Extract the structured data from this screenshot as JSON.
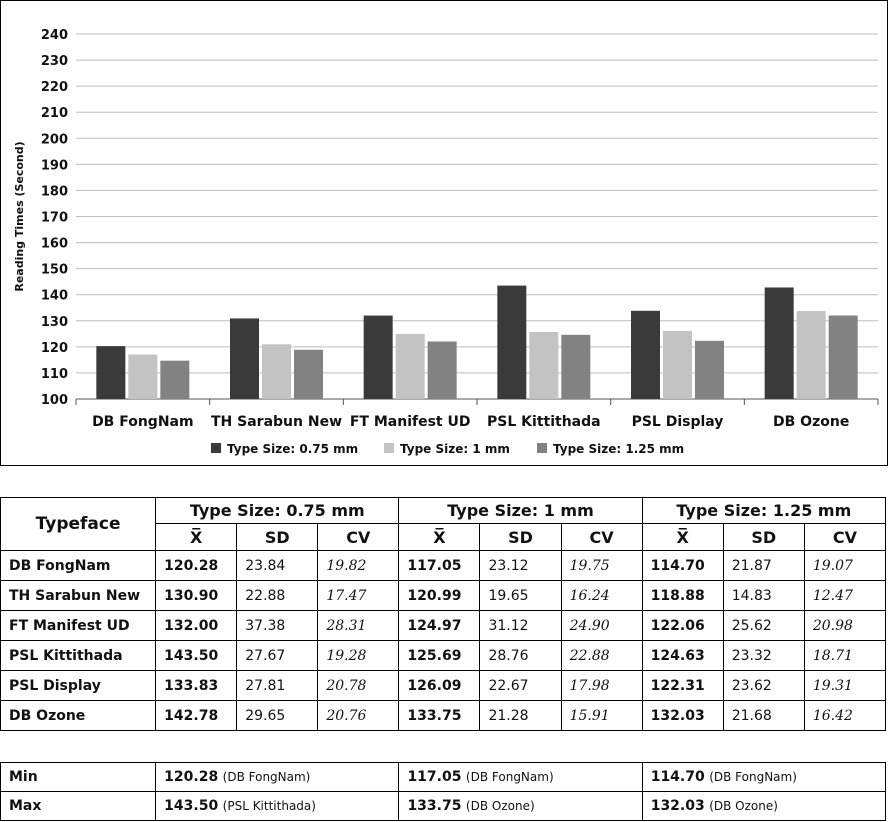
{
  "chart_data": {
    "type": "bar",
    "title": "",
    "xlabel": "",
    "ylabel": "Reading Times (Second)",
    "ylim": [
      100,
      240
    ],
    "yticks": [
      100,
      110,
      120,
      130,
      140,
      150,
      160,
      170,
      180,
      190,
      200,
      210,
      220,
      230,
      240
    ],
    "grid": true,
    "legend_position": "bottom",
    "categories": [
      "DB FongNam",
      "TH Sarabun New",
      "FT Manifest UD",
      "PSL Kittithada",
      "PSL Display",
      "DB Ozone"
    ],
    "series": [
      {
        "name": "Type Size: 0.75 mm",
        "color": "#3a3a3a",
        "values": [
          120.28,
          130.9,
          132.0,
          143.5,
          133.83,
          142.78
        ]
      },
      {
        "name": "Type Size: 1 mm",
        "color": "#c3c3c3",
        "values": [
          117.05,
          120.99,
          124.97,
          125.69,
          126.09,
          133.75
        ]
      },
      {
        "name": "Type Size: 1.25 mm",
        "color": "#828282",
        "values": [
          114.7,
          118.88,
          122.06,
          124.63,
          122.31,
          132.03
        ]
      }
    ]
  },
  "table": {
    "typeface_header": "Typeface",
    "groups": [
      "Type Size: 0.75 mm",
      "Type Size: 1 mm",
      "Type Size: 1.25 mm"
    ],
    "subheaders": [
      "X̅",
      "SD",
      "CV"
    ],
    "rows": [
      {
        "name": "DB FongNam",
        "cells": [
          "120.28",
          "23.84",
          "19.82",
          "117.05",
          "23.12",
          "19.75",
          "114.70",
          "21.87",
          "19.07"
        ]
      },
      {
        "name": "TH Sarabun New",
        "cells": [
          "130.90",
          "22.88",
          "17.47",
          "120.99",
          "19.65",
          "16.24",
          "118.88",
          "14.83",
          "12.47"
        ]
      },
      {
        "name": "FT Manifest UD",
        "cells": [
          "132.00",
          "37.38",
          "28.31",
          "124.97",
          "31.12",
          "24.90",
          "122.06",
          "25.62",
          "20.98"
        ]
      },
      {
        "name": "PSL Kittithada",
        "cells": [
          "143.50",
          "27.67",
          "19.28",
          "125.69",
          "28.76",
          "22.88",
          "124.63",
          "23.32",
          "18.71"
        ]
      },
      {
        "name": "PSL Display",
        "cells": [
          "133.83",
          "27.81",
          "20.78",
          "126.09",
          "22.67",
          "17.98",
          "122.31",
          "23.62",
          "19.31"
        ]
      },
      {
        "name": "DB Ozone",
        "cells": [
          "142.78",
          "29.65",
          "20.76",
          "133.75",
          "21.28",
          "15.91",
          "132.03",
          "21.68",
          "16.42"
        ]
      }
    ]
  },
  "minmax": {
    "rows": [
      {
        "label": "Min",
        "cells": [
          {
            "value": "120.28",
            "font": "(DB FongNam)"
          },
          {
            "value": "117.05",
            "font": "(DB FongNam)"
          },
          {
            "value": "114.70",
            "font": "(DB FongNam)"
          }
        ]
      },
      {
        "label": "Max",
        "cells": [
          {
            "value": "143.50",
            "font": "(PSL Kittithada)"
          },
          {
            "value": "133.75",
            "font": "(DB Ozone)"
          },
          {
            "value": "132.03",
            "font": "(DB Ozone)"
          }
        ]
      }
    ]
  }
}
